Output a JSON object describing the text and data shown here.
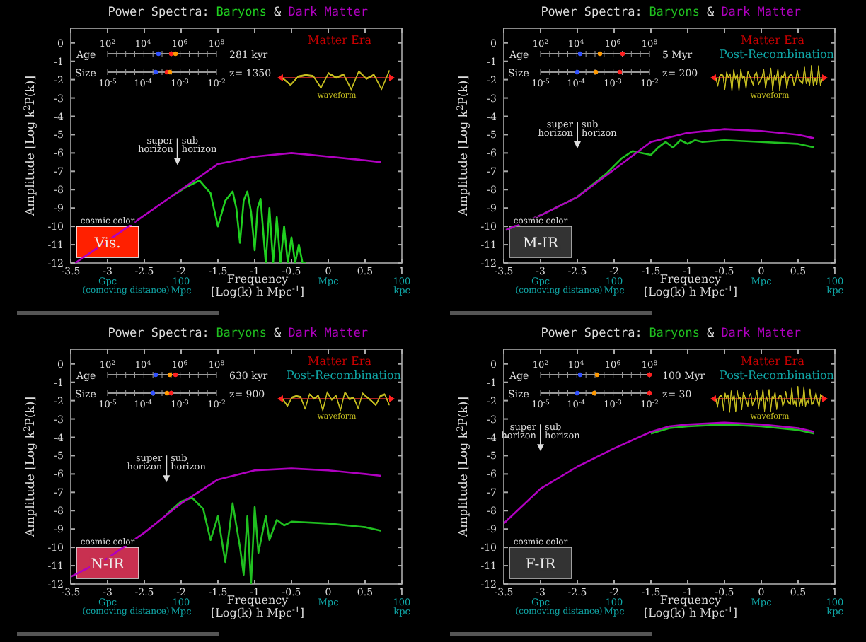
{
  "chart_data": [
    {
      "type": "line",
      "title": "Power Spectra:",
      "xlabel": "Frequency\n[Log(k) h Mpc$^{-1}$]",
      "ylabel": "Amplitude [Log k$^{2}$P(k)]",
      "xlim": [
        -3.5,
        1
      ],
      "xticks": [
        -3.5,
        -3,
        -2.5,
        -2,
        -1.5,
        -1,
        -0.5,
        0,
        0.5,
        1
      ],
      "ylim": [
        -12,
        0.8
      ],
      "yticks": [
        -12,
        -11,
        -10,
        -9,
        -8,
        -7,
        -6,
        -5,
        -4,
        -3,
        -2,
        -1,
        0
      ],
      "legend": "top",
      "annotations": [
        "Age",
        "10$^{2}$",
        "10$^{4}$",
        "10$^{6}$",
        "10$^{8}$",
        "281 kyr",
        "Size",
        "10$^{-5}$",
        "10$^{-4}$",
        "10$^{-3}$",
        "10$^{-2}$",
        "z= 1350",
        "Matter Era",
        "waveform",
        "super\nhorizon",
        "sub\nhorizon",
        "cosmic color",
        "Vis.",
        "Gpc",
        "(comoving distance)",
        "100\nMpc",
        "Mpc",
        "100\nkpc",
        "&"
      ],
      "series": [
        {
          "name": "Baryons",
          "color": "#20d020",
          "x": [
            -2.1,
            -1.95,
            -1.75,
            -1.6,
            -1.5,
            -1.4,
            -1.3,
            -1.25,
            -1.2,
            -1.15,
            -1.1,
            -1.05,
            -1.0,
            -0.96,
            -0.92,
            -0.88,
            -0.85,
            -0.8,
            -0.75,
            -0.7,
            -0.65,
            -0.6,
            -0.55,
            -0.5,
            -0.45,
            -0.4,
            -0.35,
            -0.3
          ],
          "values": [
            -8.3,
            -7.9,
            -7.5,
            -8.2,
            -10.0,
            -8.6,
            -8.1,
            -9.0,
            -10.9,
            -8.6,
            -8.1,
            -9.2,
            -11.3,
            -9.0,
            -8.5,
            -10.5,
            -12,
            -9.0,
            -12,
            -9.5,
            -12,
            -10.0,
            -12,
            -10.6,
            -12,
            -11.0,
            -12,
            -12
          ]
        },
        {
          "name": "Dark Matter",
          "color": "#b000c0",
          "x": [
            -3.44,
            -3,
            -2.5,
            -2,
            -1.5,
            -1,
            -0.5,
            0,
            0.5,
            0.72
          ],
          "values": [
            -12,
            -10.8,
            -9.4,
            -8.0,
            -6.6,
            -6.2,
            -6.0,
            -6.2,
            -6.4,
            -6.5
          ]
        }
      ]
    },
    {
      "type": "line",
      "title": "Power Spectra:",
      "xlabel": "Frequency\n[Log(k) h Mpc$^{-1}$]",
      "ylabel": "Amplitude [Log k$^{2}$P(k)]",
      "xlim": [
        -3.5,
        1
      ],
      "xticks": [
        -3.5,
        -3,
        -2.5,
        -2,
        -1.5,
        -1,
        -0.5,
        0,
        0.5,
        1
      ],
      "ylim": [
        -12,
        0.8
      ],
      "yticks": [
        -12,
        -11,
        -10,
        -9,
        -8,
        -7,
        -6,
        -5,
        -4,
        -3,
        -2,
        -1,
        0
      ],
      "legend": "top",
      "annotations": [
        "Age",
        "10$^{2}$",
        "10$^{4}$",
        "10$^{6}$",
        "10$^{8}$",
        "5 Myr",
        "Size",
        "10$^{-5}$",
        "10$^{-4}$",
        "10$^{-3}$",
        "10$^{-2}$",
        "z= 200",
        "Matter Era",
        "waveform",
        "super\nhorizon",
        "sub\nhorizon",
        "cosmic color",
        "M-IR",
        "Gpc",
        "(comoving distance)",
        "100\nMpc",
        "Mpc",
        "100\nkpc",
        "&",
        "Post-Recombination"
      ],
      "series": [
        {
          "name": "Baryons",
          "color": "#20c020",
          "x": [
            -3.47,
            -3,
            -2.5,
            -2.1,
            -1.9,
            -1.75,
            -1.5,
            -1.4,
            -1.3,
            -1.2,
            -1.1,
            -1.0,
            -0.9,
            -0.8,
            -0.5,
            0,
            0.5,
            0.72
          ],
          "values": [
            -10.2,
            -9.4,
            -8.4,
            -7.1,
            -6.3,
            -5.9,
            -6.1,
            -5.7,
            -5.4,
            -5.7,
            -5.3,
            -5.5,
            -5.3,
            -5.4,
            -5.3,
            -5.4,
            -5.5,
            -5.7
          ]
        },
        {
          "name": "Dark Matter",
          "color": "#b000c0",
          "x": [
            -3.47,
            -3,
            -2.5,
            -2,
            -1.5,
            -1,
            -0.5,
            0,
            0.5,
            0.72
          ],
          "values": [
            -10.2,
            -9.4,
            -8.4,
            -6.9,
            -5.4,
            -4.9,
            -4.7,
            -4.8,
            -5.0,
            -5.2
          ]
        }
      ]
    },
    {
      "type": "line",
      "title": "Power Spectra:",
      "xlabel": "Frequency\n[Log(k) h Mpc$^{-1}$]",
      "ylabel": "Amplitude [Log k$^{2}$P(k)]",
      "xlim": [
        -3.5,
        1
      ],
      "xticks": [
        -3.5,
        -3,
        -2.5,
        -2,
        -1.5,
        -1,
        -0.5,
        0,
        0.5,
        1
      ],
      "ylim": [
        -12,
        0.8
      ],
      "yticks": [
        -12,
        -11,
        -10,
        -9,
        -8,
        -7,
        -6,
        -5,
        -4,
        -3,
        -2,
        -1,
        0
      ],
      "legend": "top",
      "annotations": [
        "Age",
        "10$^{2}$",
        "10$^{4}$",
        "10$^{6}$",
        "10$^{8}$",
        "630 kyr",
        "Size",
        "10$^{-5}$",
        "10$^{-4}$",
        "10$^{-3}$",
        "10$^{-2}$",
        "z= 900",
        "Matter Era",
        "waveform",
        "super\nhorizon",
        "sub\nhorizon",
        "cosmic color",
        "N-IR",
        "Gpc",
        "(comoving distance)",
        "100\nMpc",
        "Mpc",
        "100\nkpc",
        "&",
        "Post-Recombination"
      ],
      "series": [
        {
          "name": "Baryons",
          "color": "#20c020",
          "x": [
            -2.2,
            -2.0,
            -1.85,
            -1.7,
            -1.6,
            -1.5,
            -1.4,
            -1.3,
            -1.2,
            -1.15,
            -1.1,
            -1.05,
            -1.0,
            -0.95,
            -0.85,
            -0.8,
            -0.7,
            -0.6,
            -0.5,
            0,
            0.5,
            0.72
          ],
          "values": [
            -8.2,
            -7.5,
            -7.3,
            -7.9,
            -9.6,
            -8.3,
            -10.8,
            -7.6,
            -10.0,
            -11.5,
            -8.3,
            -12,
            -7.8,
            -10.3,
            -8.3,
            -9.6,
            -8.5,
            -8.8,
            -8.6,
            -8.7,
            -8.9,
            -9.1
          ]
        },
        {
          "name": "Dark Matter",
          "color": "#b000c0",
          "x": [
            -3.5,
            -3,
            -2.5,
            -2,
            -1.5,
            -1,
            -0.5,
            0,
            0.5,
            0.72
          ],
          "values": [
            -11.6,
            -10.6,
            -9.2,
            -7.6,
            -6.3,
            -5.8,
            -5.7,
            -5.8,
            -6.0,
            -6.1
          ]
        }
      ]
    },
    {
      "type": "line",
      "title": "Power Spectra:",
      "xlabel": "Frequency\n[Log(k) h Mpc$^{-1}$]",
      "ylabel": "Amplitude [Log k$^{2}$P(k)]",
      "xlim": [
        -3.5,
        1
      ],
      "xticks": [
        -3.5,
        -3,
        -2.5,
        -2,
        -1.5,
        -1,
        -0.5,
        0,
        0.5,
        1
      ],
      "ylim": [
        -12,
        0.8
      ],
      "yticks": [
        -12,
        -11,
        -10,
        -9,
        -8,
        -7,
        -6,
        -5,
        -4,
        -3,
        -2,
        -1,
        0
      ],
      "legend": "top",
      "annotations": [
        "Age",
        "10$^{2}$",
        "10$^{4}$",
        "10$^{6}$",
        "10$^{8}$",
        "100 Myr",
        "Size",
        "10$^{-5}$",
        "10$^{-4}$",
        "10$^{-3}$",
        "10$^{-2}$",
        "z= 30",
        "Matter Era",
        "waveform",
        "super\nhorizon",
        "sub\nhorizon",
        "cosmic color",
        "F-IR",
        "Gpc",
        "(comoving distance)",
        "100\nMpc",
        "Mpc",
        "100\nkpc",
        "&",
        "Post-Recombination"
      ],
      "series": [
        {
          "name": "Baryons",
          "color": "#20c020",
          "x": [
            -1.5,
            -1.25,
            -1,
            -0.5,
            0,
            0.5,
            0.72
          ],
          "values": [
            -3.8,
            -3.5,
            -3.4,
            -3.3,
            -3.4,
            -3.6,
            -3.8
          ]
        },
        {
          "name": "Dark Matter",
          "color": "#b000c0",
          "x": [
            -3.5,
            -3,
            -2.5,
            -2,
            -1.5,
            -1.25,
            -1,
            -0.5,
            0,
            0.5,
            0.72
          ],
          "values": [
            -8.7,
            -6.8,
            -5.6,
            -4.6,
            -3.7,
            -3.4,
            -3.3,
            -3.2,
            -3.3,
            -3.5,
            -3.7
          ]
        }
      ]
    }
  ]
}
